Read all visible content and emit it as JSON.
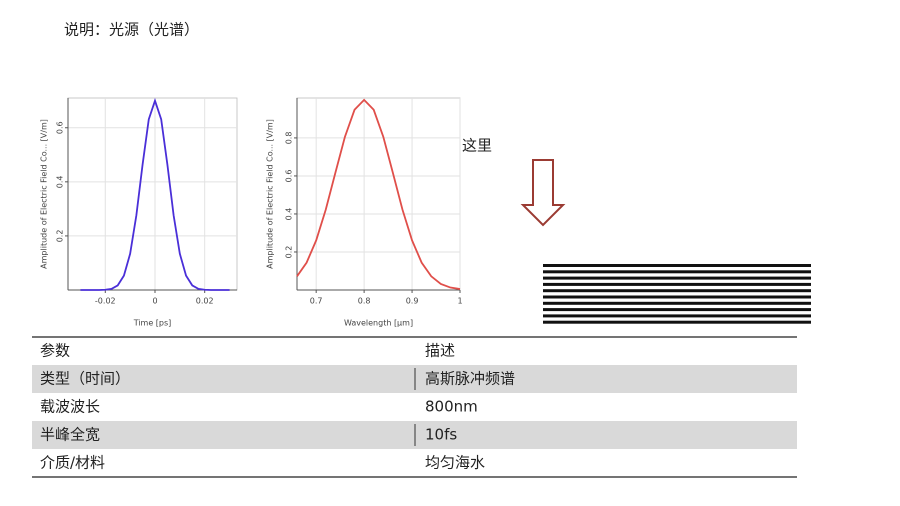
{
  "header": {
    "title": "说明：光源（光谱）"
  },
  "note": "这里",
  "chart_data": [
    {
      "type": "line",
      "xlabel": "Time [ps]",
      "ylabel": "Amplitude of Electric Field Co... [V/m]",
      "x": [
        -0.03,
        -0.0275,
        -0.025,
        -0.0225,
        -0.02,
        -0.0175,
        -0.015,
        -0.0125,
        -0.01,
        -0.0075,
        -0.005,
        -0.0025,
        0,
        0.0025,
        0.005,
        0.0075,
        0.01,
        0.0125,
        0.015,
        0.0175,
        0.02,
        0.0225,
        0.025,
        0.0275,
        0.03
      ],
      "values": [
        0,
        0,
        0,
        0,
        0.001,
        0.004,
        0.017,
        0.053,
        0.134,
        0.276,
        0.463,
        0.631,
        0.7,
        0.631,
        0.463,
        0.276,
        0.134,
        0.053,
        0.017,
        0.004,
        0.001,
        0,
        0,
        0,
        0
      ],
      "color": "#4a2fd8",
      "xlim": [
        -0.035,
        0.033
      ],
      "ylim": [
        0,
        0.71
      ],
      "xticks": [
        -0.02,
        0,
        0.02
      ],
      "yticks": [
        0.2,
        0.4,
        0.6
      ],
      "grid": true
    },
    {
      "type": "line",
      "xlabel": "Wavelength [µm]",
      "ylabel": "Amplitude of Electric Field Co... [V/m]",
      "x": [
        0.66,
        0.68,
        0.7,
        0.72,
        0.74,
        0.76,
        0.78,
        0.8,
        0.82,
        0.84,
        0.86,
        0.88,
        0.9,
        0.92,
        0.94,
        0.96,
        0.98,
        1
      ],
      "values": [
        0.072,
        0.144,
        0.261,
        0.423,
        0.616,
        0.806,
        0.948,
        1,
        0.948,
        0.806,
        0.616,
        0.423,
        0.261,
        0.144,
        0.072,
        0.032,
        0.013,
        0.005
      ],
      "color": "#e04f4a",
      "xlim": [
        0.66,
        1
      ],
      "ylim": [
        0,
        1.01
      ],
      "xticks": [
        0.7,
        0.8,
        0.9,
        1
      ],
      "yticks": [
        0.2,
        0.4,
        0.6,
        0.8
      ],
      "grid": true
    }
  ],
  "table": {
    "header": [
      "参数",
      "描述"
    ],
    "rows": [
      [
        "类型（时间）",
        "高斯脉冲频谱"
      ],
      [
        "载波波长",
        "800nm"
      ],
      [
        "半峰全宽",
        "10fs"
      ],
      [
        "介质/材料",
        "均匀海水"
      ]
    ]
  }
}
